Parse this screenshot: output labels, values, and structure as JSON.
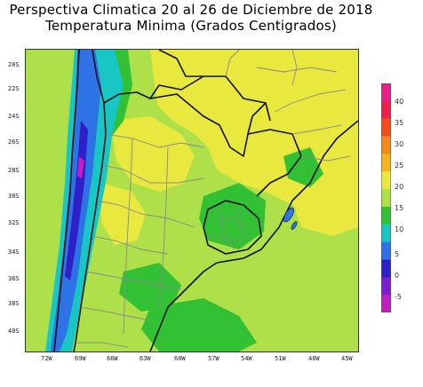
{
  "title": {
    "line1": "Perspectiva Climatica 20 al 26 de Diciembre de 2018",
    "line2": "Temperatura Minima (Grados Centigrados)"
  },
  "map": {
    "lat_labels": [
      "20S",
      "22S",
      "24S",
      "26S",
      "28S",
      "30S",
      "32S",
      "34S",
      "36S",
      "38S",
      "40S"
    ],
    "lon_labels": [
      "72W",
      "69W",
      "66W",
      "63W",
      "60W",
      "57W",
      "54W",
      "51W",
      "48W",
      "45W"
    ]
  },
  "colorbar": {
    "labels": [
      "40",
      "35",
      "30",
      "25",
      "20",
      "15",
      "10",
      "5",
      "0",
      "-5"
    ],
    "colors": [
      "#e81f8c",
      "#f0204a",
      "#f24d1c",
      "#f28a1e",
      "#f5b41f",
      "#e9e83f",
      "#aee04a",
      "#32c034",
      "#18c7c4",
      "#2e73e6",
      "#2f1fc9",
      "#7a1fc9",
      "#c21fbf"
    ]
  }
}
